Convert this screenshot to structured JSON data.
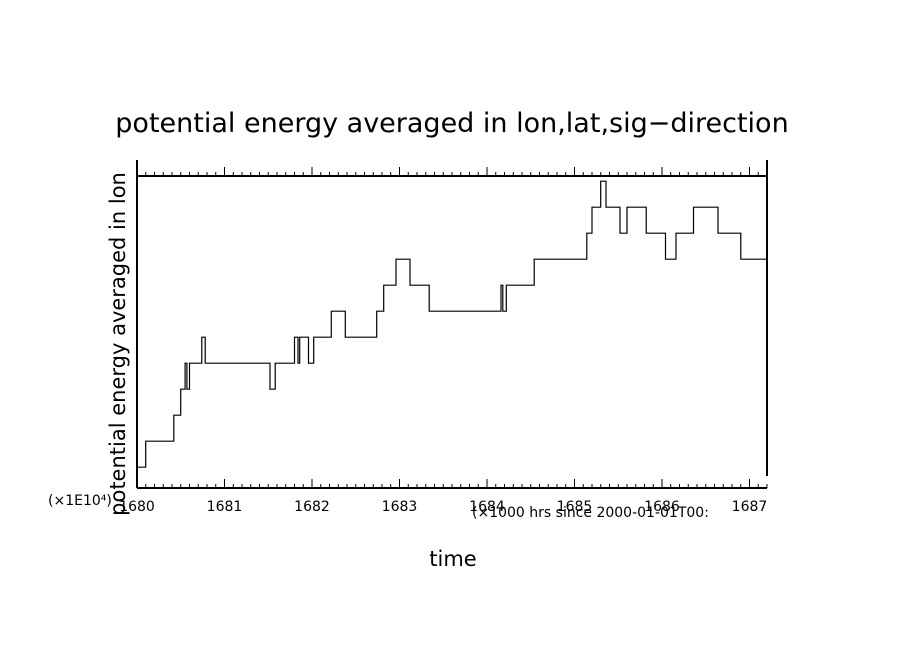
{
  "chart_data": {
    "type": "line",
    "title": "potential energy averaged in lon,lat,sig−direction",
    "xlabel": "time",
    "ylabel": "potential energy averaged in lon",
    "x_unit_note": "(×1000 hrs  since 2000-01-01T00:",
    "y_scale_note": "(×1E10⁴)",
    "xlim": [
      1680,
      1687.2
    ],
    "ylim": [
      0,
      12
    ],
    "x_ticks": [
      "1680",
      "1681",
      "1682",
      "1683",
      "1684",
      "1685",
      "1686",
      "1687"
    ],
    "grid": false,
    "legend": "none",
    "line_color": "#000000",
    "series": [
      {
        "x": [
          1680,
          1680.02,
          1680.1,
          1680.38,
          1680.42,
          1680.46,
          1680.5,
          1680.55,
          1680.57,
          1680.6,
          1680.66,
          1680.74,
          1680.78,
          1681.5,
          1681.52,
          1681.56,
          1681.58,
          1681.76,
          1681.8,
          1681.84,
          1681.86,
          1681.94,
          1681.96,
          1682.02,
          1682.1,
          1682.22,
          1682.26,
          1682.38,
          1682.44,
          1682.74,
          1682.78,
          1682.82,
          1682.84,
          1682.96,
          1683.0,
          1683.12,
          1683.16,
          1683.34,
          1683.4,
          1684.14,
          1684.16,
          1684.18,
          1684.2,
          1684.22,
          1684.26,
          1684.44,
          1684.54,
          1684.62,
          1684.98,
          1685.1,
          1685.14,
          1685.18,
          1685.2,
          1685.22,
          1685.3,
          1685.36,
          1685.38,
          1685.42,
          1685.52,
          1685.58,
          1685.6,
          1685.74,
          1685.8,
          1685.82,
          1685.88,
          1685.96,
          1686.04,
          1686.1,
          1686.16,
          1686.18,
          1686.26,
          1686.32,
          1686.36,
          1686.42,
          1686.48,
          1686.52,
          1686.58,
          1686.64,
          1686.72,
          1686.78,
          1686.86,
          1686.9,
          1686.96,
          1687.0,
          1687.06,
          1687.12,
          1687.2
        ],
        "y": [
          0.8,
          0.8,
          1.8,
          1.8,
          2.8,
          2.8,
          3.8,
          4.8,
          3.8,
          4.8,
          4.8,
          5.8,
          4.8,
          4.8,
          3.8,
          3.8,
          4.8,
          4.8,
          5.8,
          4.8,
          5.8,
          5.8,
          4.8,
          5.8,
          5.8,
          6.8,
          6.8,
          5.8,
          5.8,
          6.8,
          6.8,
          7.8,
          7.8,
          8.8,
          8.8,
          7.8,
          7.8,
          6.8,
          6.8,
          6.8,
          7.8,
          6.8,
          6.8,
          7.8,
          7.8,
          7.8,
          8.8,
          8.8,
          8.8,
          8.8,
          9.8,
          9.8,
          10.8,
          10.8,
          11.8,
          10.8,
          10.8,
          10.8,
          9.8,
          9.8,
          10.8,
          10.8,
          10.8,
          9.8,
          9.8,
          9.8,
          8.8,
          8.8,
          9.8,
          9.8,
          9.8,
          9.8,
          10.8,
          10.8,
          10.8,
          10.8,
          10.8,
          9.8,
          9.8,
          9.8,
          9.8,
          8.8,
          8.8,
          8.8,
          8.8,
          8.8,
          8.8
        ]
      }
    ]
  }
}
